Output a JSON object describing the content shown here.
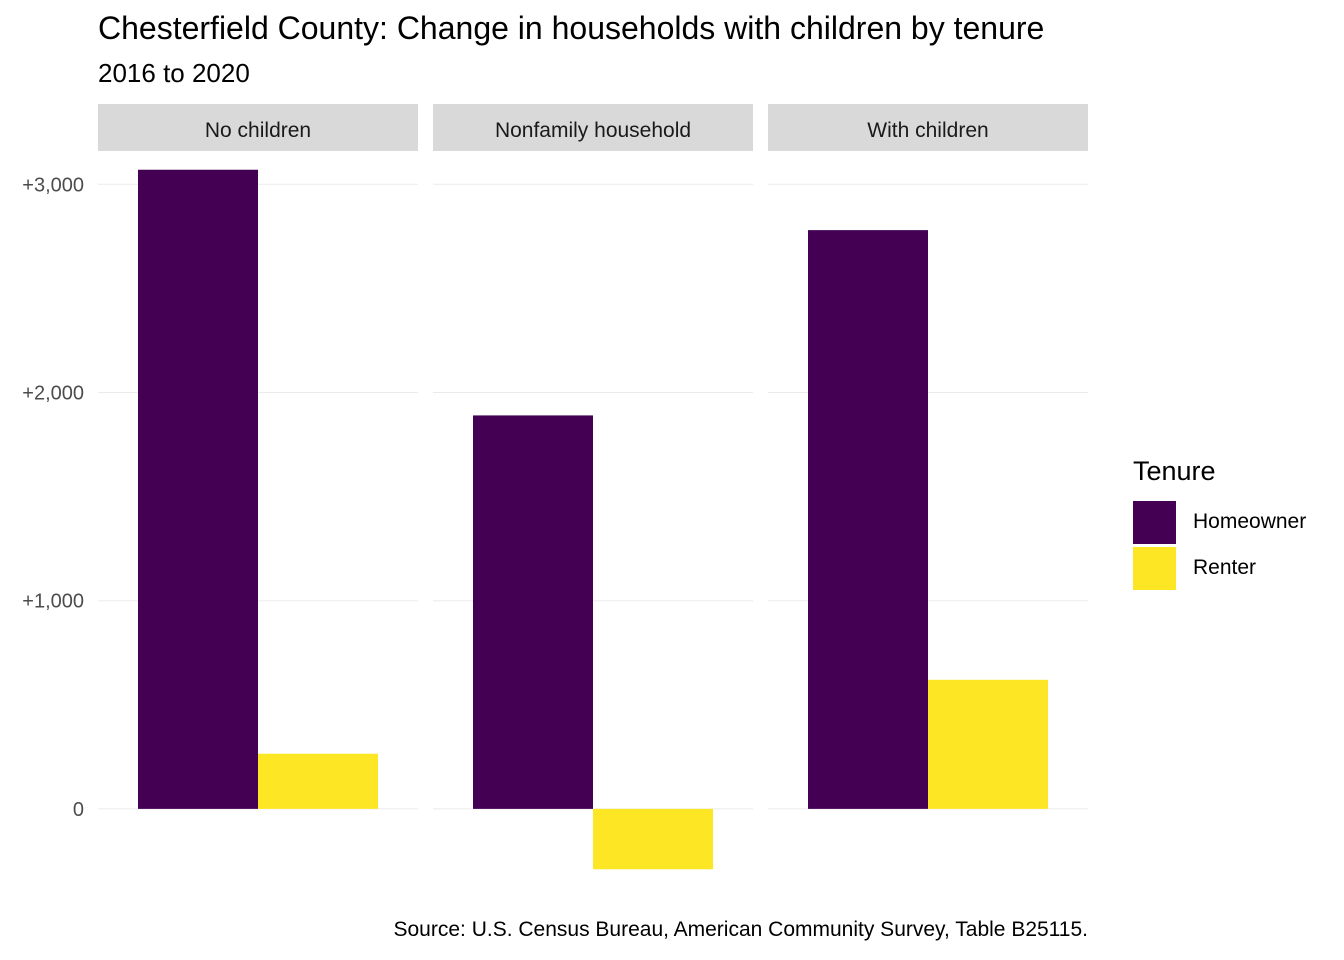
{
  "title": "Chesterfield County: Change in households with children by tenure",
  "subtitle": "2016 to 2020",
  "caption": "Source: U.S. Census Bureau, American Community Survey, Table B25115.",
  "legend": {
    "title": "Tenure",
    "items": [
      {
        "label": "Homeowner",
        "color": "#440154"
      },
      {
        "label": "Renter",
        "color": "#FDE725"
      }
    ]
  },
  "chart_data": {
    "type": "bar",
    "facets": [
      "No children",
      "Nonfamily household",
      "With children"
    ],
    "series": [
      {
        "name": "Homeowner",
        "color": "#440154",
        "values": [
          3070,
          1890,
          2780
        ]
      },
      {
        "name": "Renter",
        "color": "#FDE725",
        "values": [
          265,
          -290,
          620
        ]
      }
    ],
    "y_ticks": [
      0,
      1000,
      2000,
      3000
    ],
    "y_tick_labels": [
      "0",
      "+1,000",
      "+2,000",
      "+3,000"
    ],
    "ylim": [
      -380,
      3160
    ],
    "grid": true,
    "legend_position": "right"
  }
}
